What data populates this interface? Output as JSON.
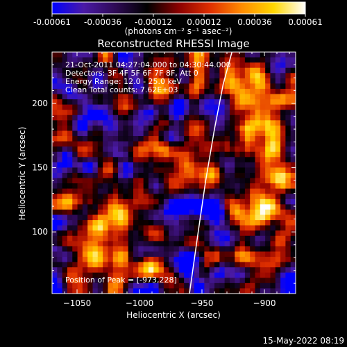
{
  "chart_data": {
    "type": "heatmap",
    "title": "Reconstructed RHESSI Image",
    "xlabel": "Heliocentric X (arcsec)",
    "ylabel": "Heliocentric Y (arcsec)",
    "xlim": [
      -1070,
      -875
    ],
    "ylim": [
      52,
      240
    ],
    "x_ticks": [
      -1050,
      -1000,
      -950,
      -900
    ],
    "y_ticks": [
      100,
      150,
      200
    ],
    "colorbar": {
      "range": [
        -0.00061,
        0.00061
      ],
      "ticks": [
        "-0.00061",
        "-0.00036",
        "-0.00012",
        "0.00012",
        "0.00036",
        "0.00061"
      ],
      "label": "(photons cm⁻² s⁻¹ asec⁻²)",
      "stops": [
        "#0000ff",
        "#4a1aa6",
        "#2e0a55",
        "#000000",
        "#8b0000",
        "#e03000",
        "#ff8c00",
        "#ffd700",
        "#ffffff"
      ]
    },
    "annotations": [
      "21-Oct-2011 04:27:04.000 to 04:30:44.000",
      "Detectors: 3F 4F 5F 6F 7F 8F, Att 0",
      "Energy Range: 12.0 - 25.0 keV",
      "Clean    Total counts: 7.62E+03"
    ],
    "peak_label": "Position of Peak = [-973,228]",
    "limb_line": [
      [
        -960,
        52
      ],
      [
        -953,
        100
      ],
      [
        -947,
        140
      ],
      [
        -940,
        180
      ],
      [
        -933,
        215
      ],
      [
        -926,
        240
      ]
    ],
    "grid": {
      "nx": 48,
      "ny": 46,
      "seed": 20111021
    }
  },
  "footer": {
    "timestamp": "15-May-2022 08:19"
  }
}
